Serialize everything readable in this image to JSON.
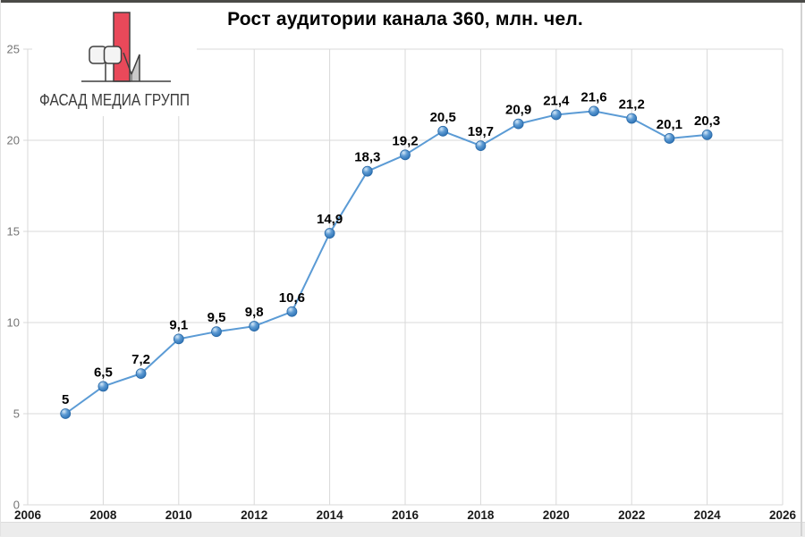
{
  "logo": {
    "text": "ФАСАД МЕДИА ГРУПП",
    "colors": {
      "red": "#e9495a",
      "gray": "#c9c9c9",
      "outline": "#3f3f3f",
      "text": "#3b3b3b"
    }
  },
  "chart_data": {
    "type": "line",
    "title": "Рост аудитории канала 360, млн. чел.",
    "x": [
      2007,
      2008,
      2009,
      2010,
      2011,
      2012,
      2013,
      2014,
      2015,
      2016,
      2017,
      2018,
      2019,
      2020,
      2021,
      2022,
      2023,
      2024
    ],
    "values": [
      5,
      6.5,
      7.2,
      9.1,
      9.5,
      9.8,
      10.6,
      14.9,
      18.3,
      19.2,
      20.5,
      19.7,
      20.9,
      21.4,
      21.6,
      21.2,
      20.1,
      20.3
    ],
    "point_labels": [
      "5",
      "6,5",
      "7,2",
      "9,1",
      "9,5",
      "9,8",
      "10,6",
      "14,9",
      "18,3",
      "19,2",
      "20,5",
      "19,7",
      "20,9",
      "21,4",
      "21,6",
      "21,2",
      "20,1",
      "20,3"
    ],
    "xlim": [
      2006,
      2026
    ],
    "ylim": [
      0,
      25
    ],
    "x_ticks": [
      2006,
      2008,
      2010,
      2012,
      2014,
      2016,
      2018,
      2020,
      2022,
      2024,
      2026
    ],
    "y_ticks": [
      0,
      5,
      10,
      15,
      20,
      25
    ],
    "grid": true,
    "legend": false,
    "style": {
      "line_color": "#5B9BD5",
      "marker_highlight": "#D6E9F8",
      "marker_mid": "#5E9BD3",
      "marker_fill": "#3579BA",
      "marker_dark": "#1F5C9E",
      "marker_stroke": "#2A6AA8",
      "grid_color": "#D9D9D9",
      "x_tick_color": "#1A1A1A",
      "y_tick_color": "#757575",
      "data_label_color": "#000000",
      "title_color": "#000000"
    }
  }
}
